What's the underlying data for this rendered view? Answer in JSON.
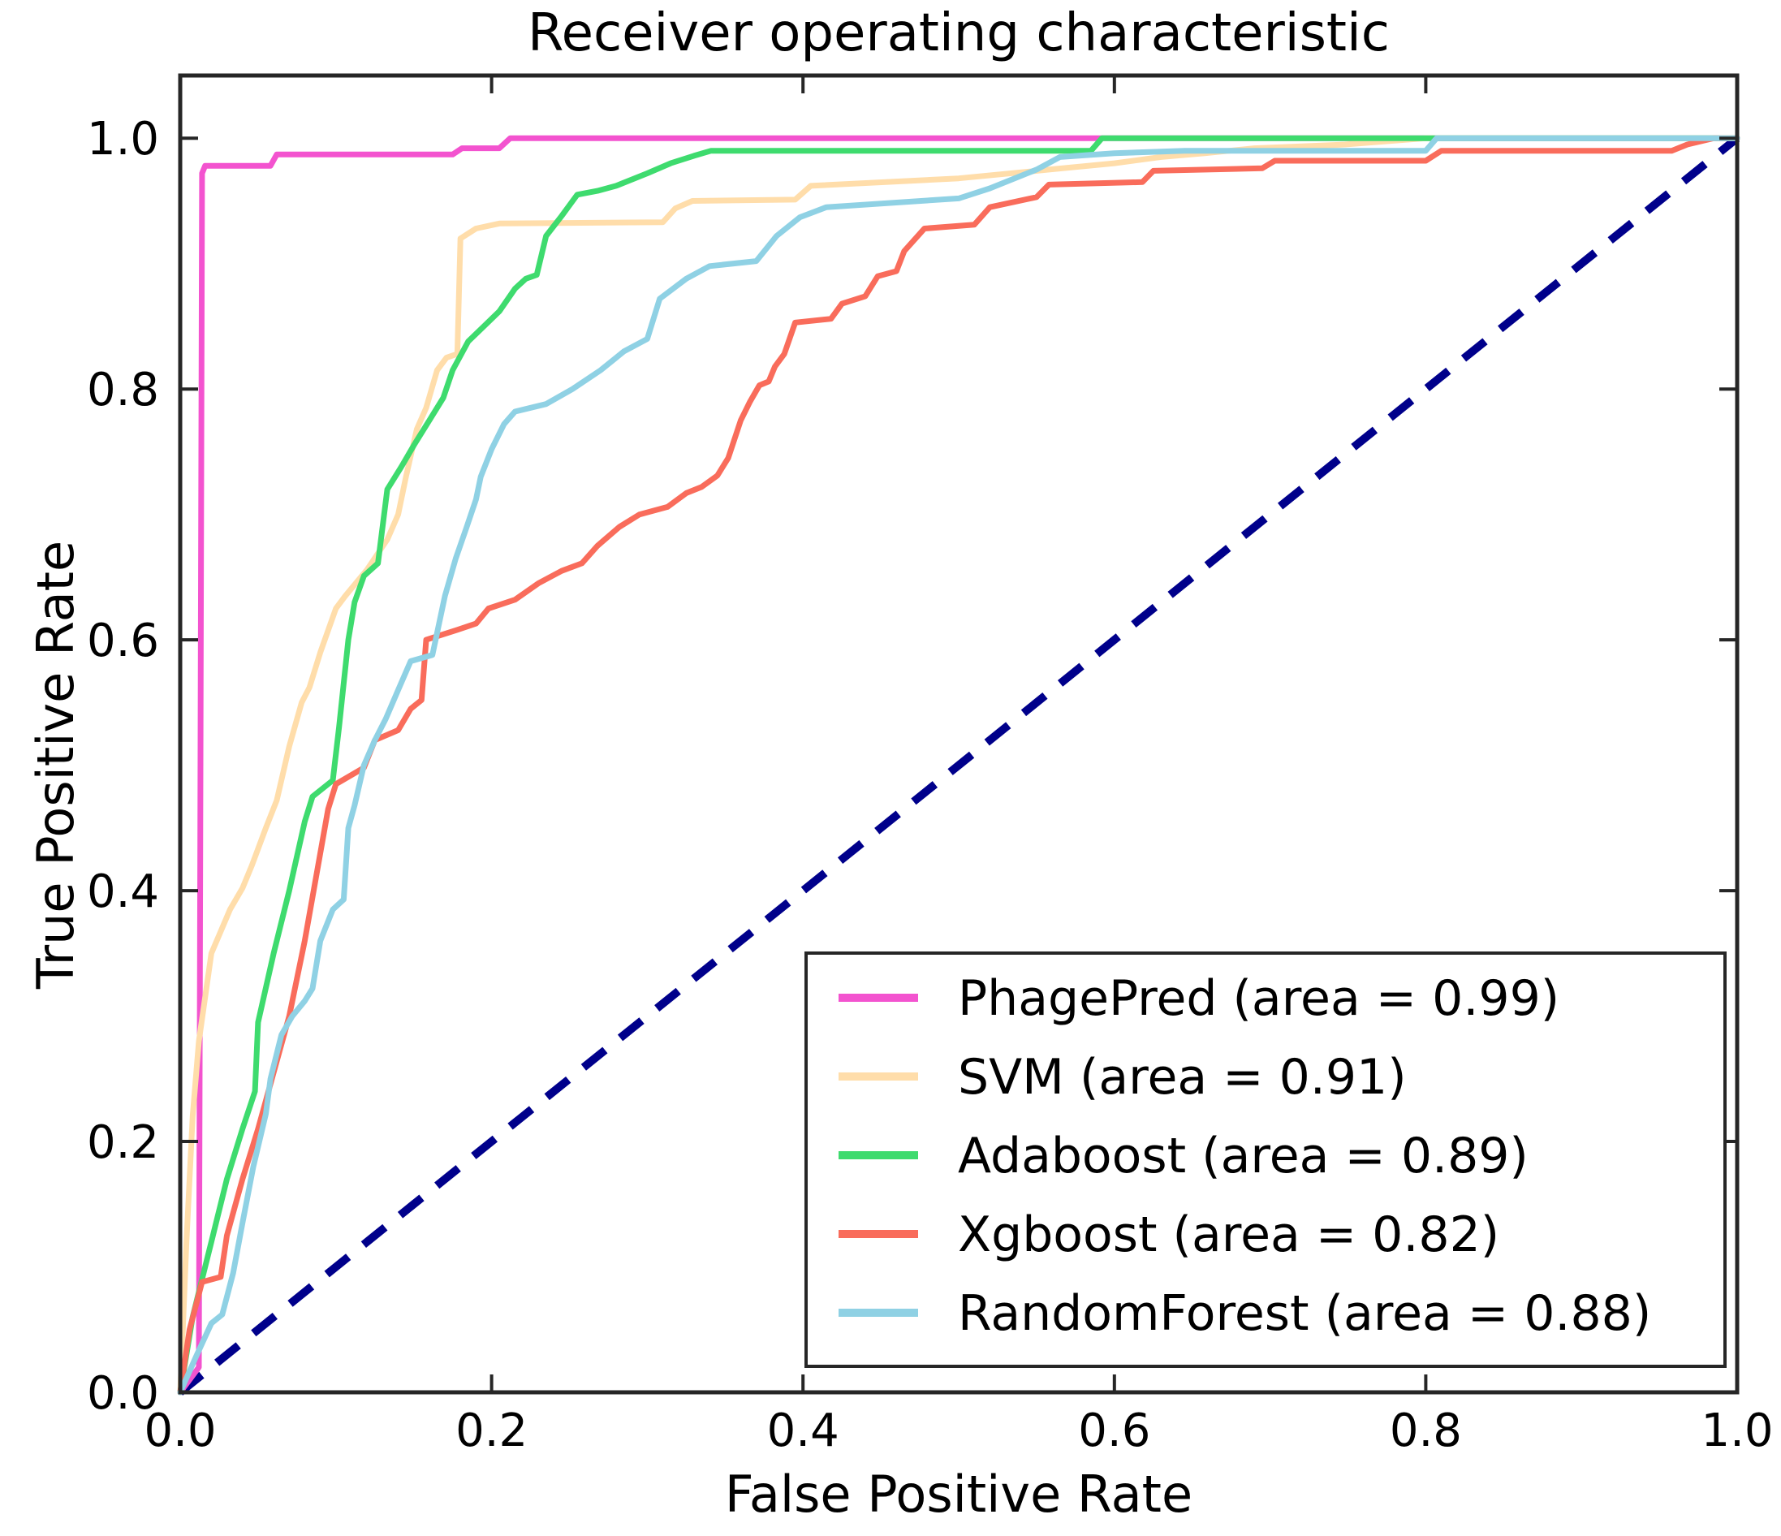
{
  "title": "Receiver operating characteristic",
  "axes": {
    "xlabel": "False Positive Rate",
    "ylabel": "True Positive Rate",
    "x_ticks": [
      "0.0",
      "0.2",
      "0.4",
      "0.6",
      "0.8",
      "1.0"
    ],
    "y_ticks": [
      "0.0",
      "0.2",
      "0.4",
      "0.6",
      "0.8",
      "1.0"
    ]
  },
  "colors": {
    "background": "#ffffff",
    "frame": "#262626",
    "text": "#000000",
    "diagonal": "#00008b",
    "phagepred": "#f353cf",
    "svm": "#ffddaa",
    "adaboost": "#3edb6e",
    "xgboost": "#f96c5b",
    "randomforest": "#8fd1e4"
  },
  "chart_data": {
    "type": "line",
    "title": "Receiver operating characteristic",
    "xlabel": "False Positive Rate",
    "ylabel": "True Positive Rate",
    "xlim": [
      0.0,
      1.0
    ],
    "ylim": [
      0.0,
      1.05
    ],
    "x_tick_values": [
      0.0,
      0.2,
      0.4,
      0.6,
      0.8,
      1.0
    ],
    "y_tick_values": [
      0.0,
      0.2,
      0.4,
      0.6,
      0.8,
      1.0
    ],
    "grid": false,
    "legend_position": "lower right",
    "diagonal": {
      "name": "chance-line",
      "style": "dashed",
      "color": "#00008b",
      "x": [
        0,
        1
      ],
      "y": [
        0,
        1
      ]
    },
    "series": [
      {
        "name": "PhagePred (area = 0.99)",
        "model": "PhagePred",
        "auc": 0.99,
        "color": "#f353cf",
        "points": [
          [
            0,
            0
          ],
          [
            0.012,
            0.02
          ],
          [
            0.014,
            0.972
          ],
          [
            0.016,
            0.978
          ],
          [
            0.058,
            0.978
          ],
          [
            0.062,
            0.987
          ],
          [
            0.175,
            0.987
          ],
          [
            0.181,
            0.992
          ],
          [
            0.205,
            0.992
          ],
          [
            0.212,
            1
          ],
          [
            1,
            1
          ]
        ]
      },
      {
        "name": "SVM (area = 0.91)",
        "model": "SVM",
        "auc": 0.91,
        "color": "#ffddaa",
        "points": [
          [
            0,
            0
          ],
          [
            0.004,
            0.12
          ],
          [
            0.008,
            0.22
          ],
          [
            0.012,
            0.28
          ],
          [
            0.02,
            0.35
          ],
          [
            0.032,
            0.385
          ],
          [
            0.04,
            0.402
          ],
          [
            0.046,
            0.42
          ],
          [
            0.055,
            0.45
          ],
          [
            0.062,
            0.472
          ],
          [
            0.07,
            0.515
          ],
          [
            0.078,
            0.55
          ],
          [
            0.083,
            0.562
          ],
          [
            0.09,
            0.59
          ],
          [
            0.1,
            0.625
          ],
          [
            0.106,
            0.635
          ],
          [
            0.12,
            0.656
          ],
          [
            0.133,
            0.68
          ],
          [
            0.14,
            0.7
          ],
          [
            0.145,
            0.73
          ],
          [
            0.152,
            0.768
          ],
          [
            0.158,
            0.785
          ],
          [
            0.165,
            0.815
          ],
          [
            0.171,
            0.825
          ],
          [
            0.178,
            0.828
          ],
          [
            0.18,
            0.92
          ],
          [
            0.19,
            0.928
          ],
          [
            0.205,
            0.932
          ],
          [
            0.31,
            0.933
          ],
          [
            0.318,
            0.944
          ],
          [
            0.329,
            0.95
          ],
          [
            0.395,
            0.951
          ],
          [
            0.405,
            0.962
          ],
          [
            0.5,
            0.968
          ],
          [
            0.558,
            0.975
          ],
          [
            0.6,
            0.98
          ],
          [
            0.63,
            0.985
          ],
          [
            0.658,
            0.988
          ],
          [
            0.69,
            0.992
          ],
          [
            0.748,
            0.995
          ],
          [
            0.8,
            1
          ],
          [
            1,
            1
          ]
        ]
      },
      {
        "name": "Adaboost (area = 0.89)",
        "model": "Adaboost",
        "auc": 0.89,
        "color": "#3edb6e",
        "points": [
          [
            0,
            0
          ],
          [
            0.008,
            0.06
          ],
          [
            0.02,
            0.12
          ],
          [
            0.03,
            0.17
          ],
          [
            0.04,
            0.21
          ],
          [
            0.048,
            0.24
          ],
          [
            0.05,
            0.295
          ],
          [
            0.06,
            0.35
          ],
          [
            0.07,
            0.4
          ],
          [
            0.08,
            0.455
          ],
          [
            0.085,
            0.475
          ],
          [
            0.098,
            0.488
          ],
          [
            0.102,
            0.53
          ],
          [
            0.108,
            0.6
          ],
          [
            0.112,
            0.63
          ],
          [
            0.118,
            0.651
          ],
          [
            0.127,
            0.661
          ],
          [
            0.133,
            0.72
          ],
          [
            0.142,
            0.738
          ],
          [
            0.15,
            0.755
          ],
          [
            0.16,
            0.775
          ],
          [
            0.169,
            0.793
          ],
          [
            0.175,
            0.815
          ],
          [
            0.185,
            0.838
          ],
          [
            0.195,
            0.85
          ],
          [
            0.205,
            0.862
          ],
          [
            0.215,
            0.88
          ],
          [
            0.222,
            0.888
          ],
          [
            0.229,
            0.891
          ],
          [
            0.235,
            0.922
          ],
          [
            0.245,
            0.938
          ],
          [
            0.255,
            0.955
          ],
          [
            0.268,
            0.958
          ],
          [
            0.28,
            0.962
          ],
          [
            0.3,
            0.972
          ],
          [
            0.315,
            0.98
          ],
          [
            0.33,
            0.986
          ],
          [
            0.341,
            0.99
          ],
          [
            0.585,
            0.99
          ],
          [
            0.592,
            1
          ],
          [
            1,
            1
          ]
        ]
      },
      {
        "name": "Xgboost (area = 0.82)",
        "model": "Xgboost",
        "auc": 0.82,
        "color": "#f96c5b",
        "points": [
          [
            0,
            0
          ],
          [
            0.006,
            0.05
          ],
          [
            0.014,
            0.088
          ],
          [
            0.026,
            0.092
          ],
          [
            0.03,
            0.125
          ],
          [
            0.04,
            0.17
          ],
          [
            0.05,
            0.21
          ],
          [
            0.06,
            0.255
          ],
          [
            0.07,
            0.3
          ],
          [
            0.08,
            0.36
          ],
          [
            0.09,
            0.43
          ],
          [
            0.095,
            0.465
          ],
          [
            0.1,
            0.485
          ],
          [
            0.118,
            0.498
          ],
          [
            0.125,
            0.52
          ],
          [
            0.14,
            0.528
          ],
          [
            0.148,
            0.545
          ],
          [
            0.155,
            0.552
          ],
          [
            0.158,
            0.6
          ],
          [
            0.178,
            0.608
          ],
          [
            0.19,
            0.613
          ],
          [
            0.198,
            0.625
          ],
          [
            0.215,
            0.632
          ],
          [
            0.23,
            0.645
          ],
          [
            0.245,
            0.655
          ],
          [
            0.258,
            0.661
          ],
          [
            0.268,
            0.675
          ],
          [
            0.282,
            0.69
          ],
          [
            0.295,
            0.7
          ],
          [
            0.313,
            0.706
          ],
          [
            0.325,
            0.717
          ],
          [
            0.335,
            0.722
          ],
          [
            0.345,
            0.731
          ],
          [
            0.352,
            0.745
          ],
          [
            0.36,
            0.775
          ],
          [
            0.366,
            0.79
          ],
          [
            0.372,
            0.803
          ],
          [
            0.378,
            0.806
          ],
          [
            0.382,
            0.818
          ],
          [
            0.388,
            0.828
          ],
          [
            0.395,
            0.853
          ],
          [
            0.418,
            0.856
          ],
          [
            0.425,
            0.868
          ],
          [
            0.44,
            0.874
          ],
          [
            0.448,
            0.89
          ],
          [
            0.46,
            0.894
          ],
          [
            0.465,
            0.91
          ],
          [
            0.478,
            0.928
          ],
          [
            0.51,
            0.931
          ],
          [
            0.52,
            0.945
          ],
          [
            0.55,
            0.953
          ],
          [
            0.558,
            0.963
          ],
          [
            0.618,
            0.965
          ],
          [
            0.625,
            0.974
          ],
          [
            0.695,
            0.976
          ],
          [
            0.703,
            0.982
          ],
          [
            0.8,
            0.982
          ],
          [
            0.81,
            0.99
          ],
          [
            0.958,
            0.99
          ],
          [
            0.968,
            0.995
          ],
          [
            0.985,
            1
          ],
          [
            1,
            1
          ]
        ]
      },
      {
        "name": "RandomForest (area = 0.88)",
        "model": "RandomForest",
        "auc": 0.88,
        "color": "#8fd1e4",
        "points": [
          [
            0,
            0
          ],
          [
            0.01,
            0.028
          ],
          [
            0.02,
            0.055
          ],
          [
            0.027,
            0.062
          ],
          [
            0.034,
            0.095
          ],
          [
            0.04,
            0.135
          ],
          [
            0.047,
            0.18
          ],
          [
            0.055,
            0.222
          ],
          [
            0.058,
            0.25
          ],
          [
            0.065,
            0.285
          ],
          [
            0.072,
            0.3
          ],
          [
            0.08,
            0.312
          ],
          [
            0.085,
            0.322
          ],
          [
            0.09,
            0.36
          ],
          [
            0.098,
            0.385
          ],
          [
            0.105,
            0.393
          ],
          [
            0.108,
            0.45
          ],
          [
            0.112,
            0.468
          ],
          [
            0.118,
            0.5
          ],
          [
            0.125,
            0.52
          ],
          [
            0.132,
            0.537
          ],
          [
            0.14,
            0.56
          ],
          [
            0.148,
            0.583
          ],
          [
            0.162,
            0.588
          ],
          [
            0.17,
            0.635
          ],
          [
            0.177,
            0.665
          ],
          [
            0.184,
            0.69
          ],
          [
            0.19,
            0.712
          ],
          [
            0.193,
            0.73
          ],
          [
            0.2,
            0.752
          ],
          [
            0.208,
            0.772
          ],
          [
            0.215,
            0.782
          ],
          [
            0.235,
            0.788
          ],
          [
            0.252,
            0.8
          ],
          [
            0.27,
            0.815
          ],
          [
            0.285,
            0.83
          ],
          [
            0.3,
            0.84
          ],
          [
            0.308,
            0.872
          ],
          [
            0.325,
            0.888
          ],
          [
            0.34,
            0.898
          ],
          [
            0.37,
            0.902
          ],
          [
            0.383,
            0.922
          ],
          [
            0.398,
            0.937
          ],
          [
            0.415,
            0.945
          ],
          [
            0.5,
            0.952
          ],
          [
            0.52,
            0.96
          ],
          [
            0.55,
            0.975
          ],
          [
            0.565,
            0.985
          ],
          [
            0.6,
            0.988
          ],
          [
            0.645,
            0.99
          ],
          [
            0.8,
            0.99
          ],
          [
            0.807,
            1
          ],
          [
            1,
            1
          ]
        ]
      }
    ]
  }
}
